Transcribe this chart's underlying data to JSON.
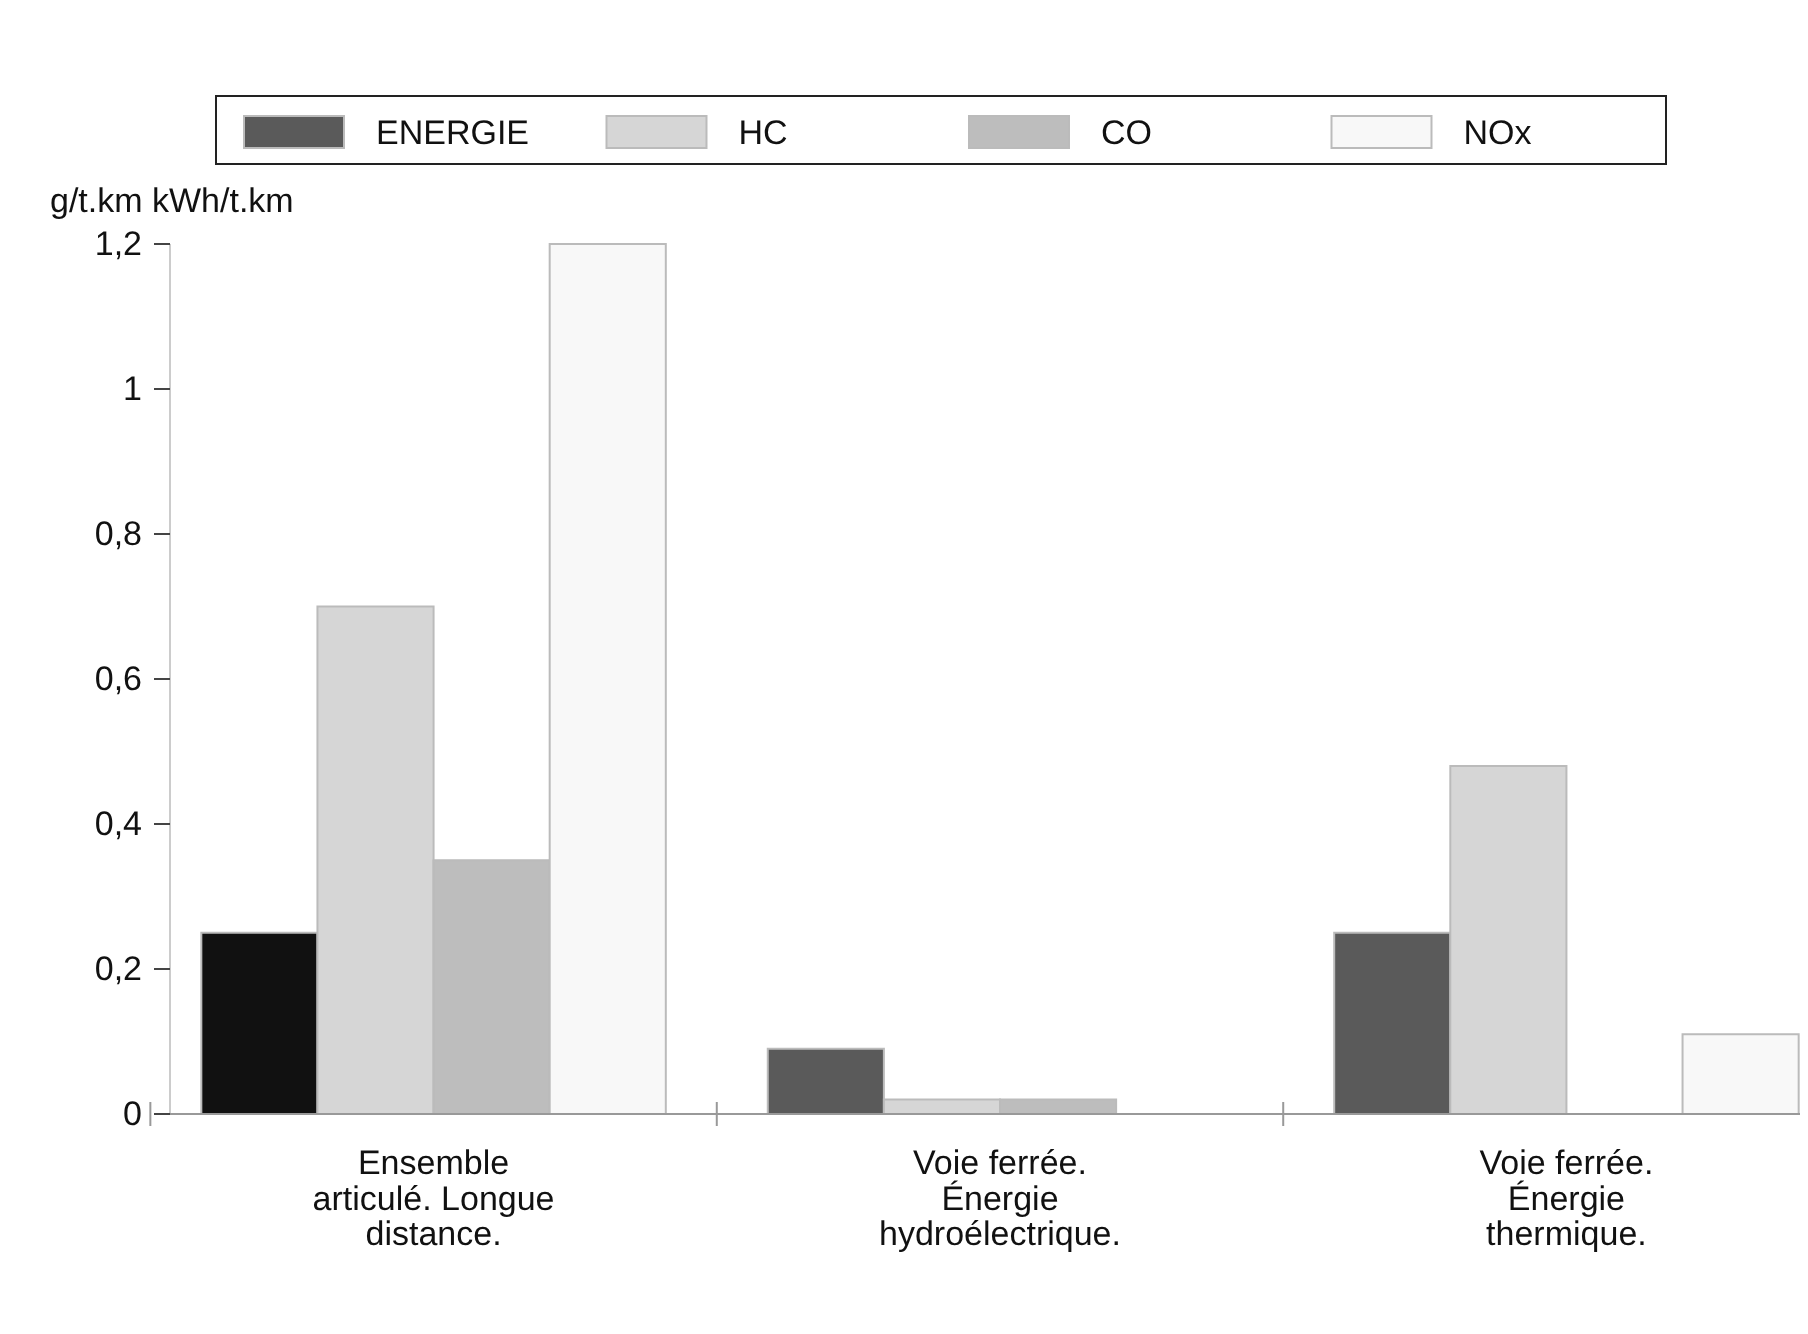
{
  "chart_data": {
    "type": "bar",
    "ylabel": "g/t.km kWh/t.km",
    "categories": [
      "Ensemble articulé. Longue distance.",
      "Voie ferrée. Énergie hydroélectrique.",
      "Voie ferrée. Énergie thermique."
    ],
    "series": [
      {
        "name": "ENERGIE",
        "color": "#5a5a5a",
        "colors": [
          "#111111",
          "#5a5a5a",
          "#5a5a5a"
        ],
        "values": [
          0.25,
          0.09,
          0.25
        ]
      },
      {
        "name": "HC",
        "color": "#d6d6d6",
        "values": [
          0.7,
          0.02,
          0.48
        ]
      },
      {
        "name": "CO",
        "color": "#bdbdbd",
        "values": [
          0.35,
          0.02,
          0
        ]
      },
      {
        "name": "NOx",
        "color": "#f8f8f8",
        "values": [
          1.2,
          0,
          0.11
        ]
      }
    ],
    "ylim": [
      0,
      1.2
    ],
    "yticks": [
      {
        "value": 0,
        "label": "0"
      },
      {
        "value": 0.2,
        "label": "0,2"
      },
      {
        "value": 0.4,
        "label": "0,4"
      },
      {
        "value": 0.6,
        "label": "0,6"
      },
      {
        "value": 0.8,
        "label": "0,8"
      },
      {
        "value": 1,
        "label": "1"
      },
      {
        "value": 1.2,
        "label": "1,2"
      }
    ],
    "grid": false,
    "legend": "top"
  }
}
